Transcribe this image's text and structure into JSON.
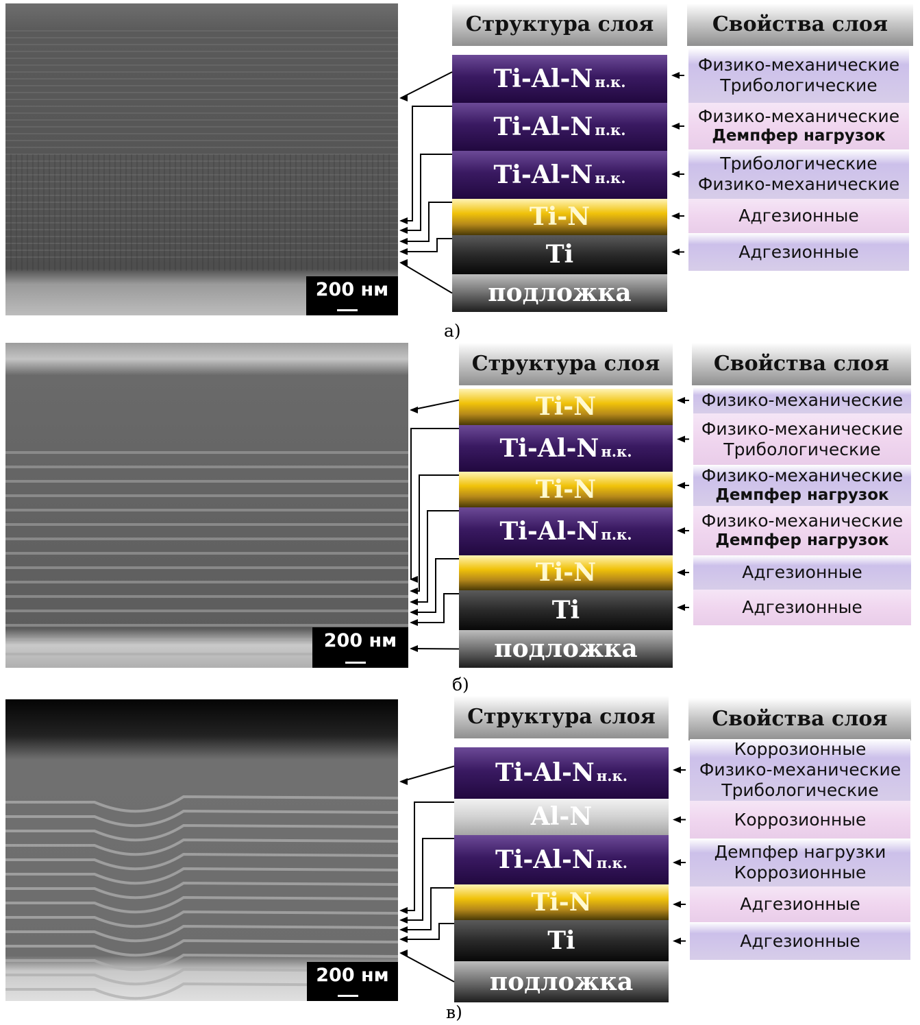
{
  "scale_label": "200 нм",
  "structure_header": "Структура слоя",
  "properties_header": "Свойства слоя",
  "panels": [
    {
      "caption": "а)",
      "layers": [
        {
          "name": "Ti-Al-N",
          "suffix": "н.к.",
          "type": "tialn"
        },
        {
          "name": "Ti-Al-N",
          "suffix": "п.к.",
          "type": "tialn"
        },
        {
          "name": "Ti-Al-N",
          "suffix": "н.к.",
          "type": "tialn"
        },
        {
          "name": "Ti-N",
          "suffix": "",
          "type": "tin"
        },
        {
          "name": "Ti",
          "suffix": "",
          "type": "ti"
        },
        {
          "name": "подложка",
          "suffix": "",
          "type": "sub"
        }
      ],
      "properties": [
        {
          "lines": [
            "Физико-механические",
            "Трибологические"
          ],
          "bold": [
            false,
            false
          ]
        },
        {
          "lines": [
            "Физико-механические",
            "Демпфер нагрузок"
          ],
          "bold": [
            false,
            true
          ]
        },
        {
          "lines": [
            "Трибологические",
            "Физико-механические"
          ],
          "bold": [
            false,
            false
          ]
        },
        {
          "lines": [
            "Адгезионные"
          ],
          "bold": [
            false
          ]
        },
        {
          "lines": [
            "Адгезионные"
          ],
          "bold": [
            false
          ]
        }
      ]
    },
    {
      "caption": "б)",
      "layers": [
        {
          "name": "Ti-N",
          "suffix": "",
          "type": "tin"
        },
        {
          "name": "Ti-Al-N",
          "suffix": "н.к.",
          "type": "tialn"
        },
        {
          "name": "Ti-N",
          "suffix": "",
          "type": "tin"
        },
        {
          "name": "Ti-Al-N",
          "suffix": "п.к.",
          "type": "tialn"
        },
        {
          "name": "Ti-N",
          "suffix": "",
          "type": "tin"
        },
        {
          "name": "Ti",
          "suffix": "",
          "type": "ti"
        },
        {
          "name": "подложка",
          "suffix": "",
          "type": "sub"
        }
      ],
      "properties": [
        {
          "lines": [
            "Физико-механические"
          ],
          "bold": [
            false
          ]
        },
        {
          "lines": [
            "Физико-механические",
            "Трибологические"
          ],
          "bold": [
            false,
            false
          ]
        },
        {
          "lines": [
            "Физико-механические",
            "Демпфер нагрузок"
          ],
          "bold": [
            false,
            true
          ]
        },
        {
          "lines": [
            "Физико-механические",
            "Демпфер нагрузок"
          ],
          "bold": [
            false,
            true
          ]
        },
        {
          "lines": [
            "Адгезионные"
          ],
          "bold": [
            false
          ]
        },
        {
          "lines": [
            "Адгезионные"
          ],
          "bold": [
            false
          ]
        }
      ]
    },
    {
      "caption": "в)",
      "layers": [
        {
          "name": "Ti-Al-N",
          "suffix": "н.к.",
          "type": "tialn"
        },
        {
          "name": "Al-N",
          "suffix": "",
          "type": "aln"
        },
        {
          "name": "Ti-Al-N",
          "suffix": "п.к.",
          "type": "tialn"
        },
        {
          "name": "Ti-N",
          "suffix": "",
          "type": "tin"
        },
        {
          "name": "Ti",
          "suffix": "",
          "type": "ti"
        },
        {
          "name": "подложка",
          "suffix": "",
          "type": "sub"
        }
      ],
      "properties": [
        {
          "lines": [
            "Коррозионные",
            "Физико-механические",
            "Трибологические"
          ],
          "bold": [
            false,
            false,
            false
          ]
        },
        {
          "lines": [
            "Коррозионные"
          ],
          "bold": [
            false
          ]
        },
        {
          "lines": [
            "Демпфер нагрузки",
            "Коррозионные"
          ],
          "bold": [
            false,
            false
          ]
        },
        {
          "lines": [
            "Адгезионные"
          ],
          "bold": [
            false
          ]
        },
        {
          "lines": [
            "Адгезионные"
          ],
          "bold": [
            false
          ]
        }
      ]
    }
  ]
}
